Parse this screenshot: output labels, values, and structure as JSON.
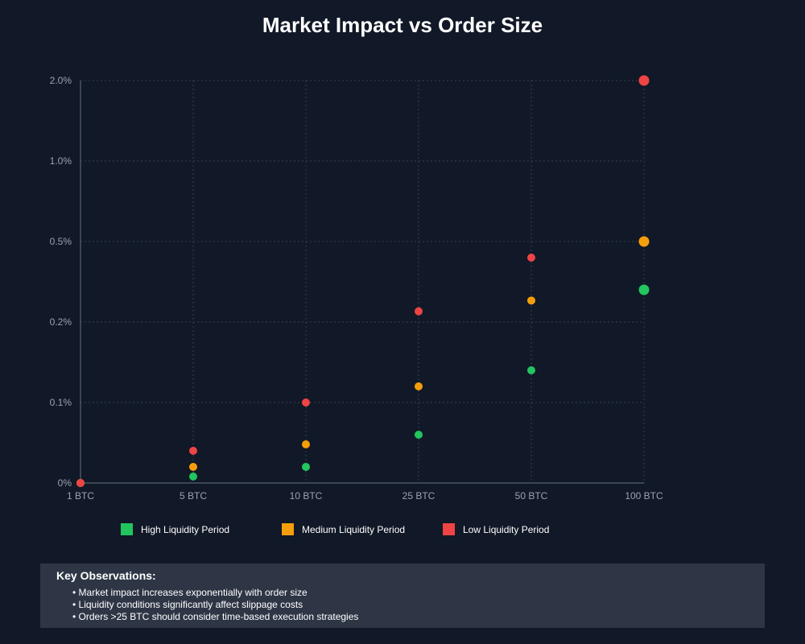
{
  "chart_data": {
    "type": "scatter",
    "title": "Market Impact vs Order Size",
    "xlabel": "",
    "ylabel": "",
    "categories": [
      "1 BTC",
      "5 BTC",
      "10 BTC",
      "25 BTC",
      "50 BTC",
      "100 BTC"
    ],
    "y_ticks": [
      "0%",
      "0.1%",
      "0.2%",
      "0.5%",
      "1.0%",
      "2.0%"
    ],
    "y_tick_values": [
      0,
      0.1,
      0.2,
      0.5,
      1.0,
      2.0
    ],
    "y_scale": "categorical-ticks (piecewise linear between labeled ticks)",
    "grid": true,
    "legend_position": "bottom",
    "series": [
      {
        "name": "High Liquidity Period",
        "color": "#22c55e",
        "values": [
          0,
          0.008,
          0.02,
          0.06,
          0.14,
          0.32
        ]
      },
      {
        "name": "Medium Liquidity Period",
        "color": "#f59e0b",
        "values": [
          0,
          0.02,
          0.048,
          0.12,
          0.28,
          0.5
        ]
      },
      {
        "name": "Low Liquidity Period",
        "color": "#ef4444",
        "values": [
          0,
          0.04,
          0.1,
          0.24,
          0.44,
          2.0
        ]
      }
    ]
  },
  "observations": {
    "title": "Key Observations:",
    "items": [
      "Market impact increases exponentially with order size",
      "Liquidity conditions significantly affect slippage costs",
      "Orders >25 BTC should consider time-based execution strategies"
    ]
  }
}
